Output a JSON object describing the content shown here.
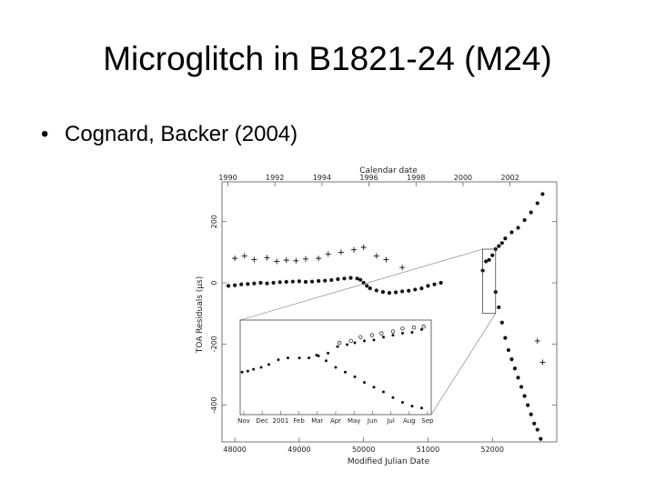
{
  "slide": {
    "title": "Microglitch in B1821-24 (M24)",
    "bullet": "Cognard, Backer (2004)",
    "bullet_marker": "•"
  },
  "chart_data": {
    "type": "scatter",
    "title": "",
    "top_axis_label": "Calendar date",
    "top_ticks": [
      "1990",
      "1992",
      "1994",
      "1996",
      "1998",
      "2000",
      "2002"
    ],
    "top_tick_mjd": [
      47892,
      48622,
      49353,
      50083,
      50814,
      51544,
      52275
    ],
    "xlabel": "Modified Julian Date",
    "ylabel": "TOA Residuals (μs)",
    "xlim": [
      47800,
      53000
    ],
    "ylim": [
      -520,
      330
    ],
    "xticks": [
      48000,
      49000,
      50000,
      51000,
      52000
    ],
    "xtick_labels": [
      "48000",
      "49000",
      "50000",
      "51000",
      "52000"
    ],
    "yticks": [
      -400,
      -200,
      0,
      200
    ],
    "ytick_labels": [
      "-400",
      "-200",
      "0",
      "200"
    ],
    "series": [
      {
        "marker": "dot",
        "points": [
          [
            47900,
            -10
          ],
          [
            48000,
            -8
          ],
          [
            48100,
            -5
          ],
          [
            48200,
            -4
          ],
          [
            48300,
            -2
          ],
          [
            48400,
            0
          ],
          [
            48500,
            -2
          ],
          [
            48600,
            0
          ],
          [
            48700,
            2
          ],
          [
            48800,
            3
          ],
          [
            48900,
            4
          ],
          [
            49000,
            5
          ],
          [
            49100,
            3
          ],
          [
            49200,
            4
          ],
          [
            49300,
            6
          ],
          [
            49400,
            7
          ],
          [
            49500,
            9
          ],
          [
            49600,
            12
          ],
          [
            49700,
            14
          ],
          [
            49800,
            16
          ],
          [
            49900,
            14
          ],
          [
            49950,
            10
          ],
          [
            50000,
            0
          ],
          [
            50050,
            -10
          ],
          [
            50100,
            -18
          ],
          [
            50200,
            -25
          ],
          [
            50300,
            -30
          ],
          [
            50400,
            -33
          ],
          [
            50500,
            -31
          ],
          [
            50600,
            -28
          ],
          [
            50700,
            -26
          ],
          [
            50800,
            -22
          ],
          [
            50900,
            -18
          ],
          [
            51000,
            -10
          ],
          [
            51100,
            -5
          ],
          [
            51200,
            0
          ]
        ]
      },
      {
        "marker": "dot",
        "points": [
          [
            51850,
            40
          ],
          [
            51900,
            70
          ],
          [
            51950,
            75
          ],
          [
            52000,
            90
          ],
          [
            52050,
            110
          ],
          [
            52100,
            120
          ],
          [
            52150,
            130
          ],
          [
            52200,
            145
          ],
          [
            52300,
            165
          ],
          [
            52400,
            180
          ],
          [
            52500,
            205
          ],
          [
            52600,
            230
          ],
          [
            52700,
            260
          ],
          [
            52780,
            290
          ]
        ]
      },
      {
        "marker": "dot",
        "points": [
          [
            52050,
            -30
          ],
          [
            52100,
            -80
          ],
          [
            52150,
            -130
          ],
          [
            52200,
            -180
          ],
          [
            52250,
            -220
          ],
          [
            52300,
            -250
          ],
          [
            52350,
            -280
          ],
          [
            52400,
            -310
          ],
          [
            52450,
            -340
          ],
          [
            52500,
            -370
          ],
          [
            52550,
            -400
          ],
          [
            52600,
            -430
          ],
          [
            52650,
            -460
          ],
          [
            52700,
            -480
          ],
          [
            52750,
            -510
          ]
        ]
      },
      {
        "marker": "cross",
        "points": [
          [
            48000,
            80
          ],
          [
            48150,
            88
          ],
          [
            48300,
            76
          ],
          [
            48500,
            82
          ],
          [
            48650,
            70
          ],
          [
            48800,
            74
          ],
          [
            48950,
            72
          ],
          [
            49100,
            78
          ],
          [
            49300,
            80
          ],
          [
            49450,
            94
          ],
          [
            49650,
            100
          ],
          [
            49850,
            108
          ],
          [
            50000,
            116
          ],
          [
            50200,
            88
          ],
          [
            50350,
            76
          ],
          [
            50600,
            50
          ],
          [
            52880,
            360
          ],
          [
            52700,
            -190
          ],
          [
            52780,
            -260
          ]
        ]
      }
    ],
    "inset": {
      "xlim": [
        0,
        10
      ],
      "ylim": [
        0,
        10
      ],
      "ticks": [
        "Nov",
        "Dec",
        "2001",
        "Feb",
        "Mar",
        "Apr",
        "May",
        "Jun",
        "Jul",
        "Aug",
        "Sep"
      ],
      "zoom_box_mjd": [
        51850,
        52050
      ],
      "zoom_box_us": [
        -100,
        110
      ],
      "series": [
        {
          "marker": "dot",
          "points": [
            [
              0.1,
              4.5
            ],
            [
              0.4,
              4.6
            ],
            [
              0.7,
              4.8
            ],
            [
              1.1,
              5.0
            ],
            [
              1.5,
              5.3
            ],
            [
              2.0,
              5.8
            ],
            [
              2.5,
              6.0
            ],
            [
              3.1,
              6.0
            ],
            [
              3.6,
              6.0
            ],
            [
              4.1,
              6.2
            ],
            [
              4.6,
              6.5
            ],
            [
              5.1,
              7.2
            ],
            [
              5.6,
              7.4
            ],
            [
              6.0,
              7.6
            ],
            [
              6.5,
              7.8
            ],
            [
              7.0,
              7.9
            ],
            [
              7.5,
              8.2
            ],
            [
              8.0,
              8.4
            ],
            [
              8.5,
              8.6
            ],
            [
              9.0,
              8.7
            ],
            [
              9.5,
              9.0
            ]
          ]
        },
        {
          "marker": "dot",
          "points": [
            [
              4.0,
              6.3
            ],
            [
              4.5,
              5.7
            ],
            [
              5.0,
              5.0
            ],
            [
              5.5,
              4.5
            ],
            [
              6.0,
              4.0
            ],
            [
              6.5,
              3.4
            ],
            [
              7.0,
              2.9
            ],
            [
              7.5,
              2.4
            ],
            [
              8.0,
              1.8
            ],
            [
              8.5,
              1.3
            ],
            [
              9.0,
              0.9
            ],
            [
              9.5,
              0.7
            ]
          ]
        },
        {
          "marker": "circle",
          "points": [
            [
              5.2,
              7.6
            ],
            [
              5.8,
              7.8
            ],
            [
              6.3,
              8.2
            ],
            [
              6.9,
              8.4
            ],
            [
              7.4,
              8.6
            ],
            [
              8.0,
              8.8
            ],
            [
              8.5,
              9.1
            ],
            [
              9.1,
              9.2
            ],
            [
              9.6,
              9.3
            ]
          ]
        }
      ]
    }
  }
}
